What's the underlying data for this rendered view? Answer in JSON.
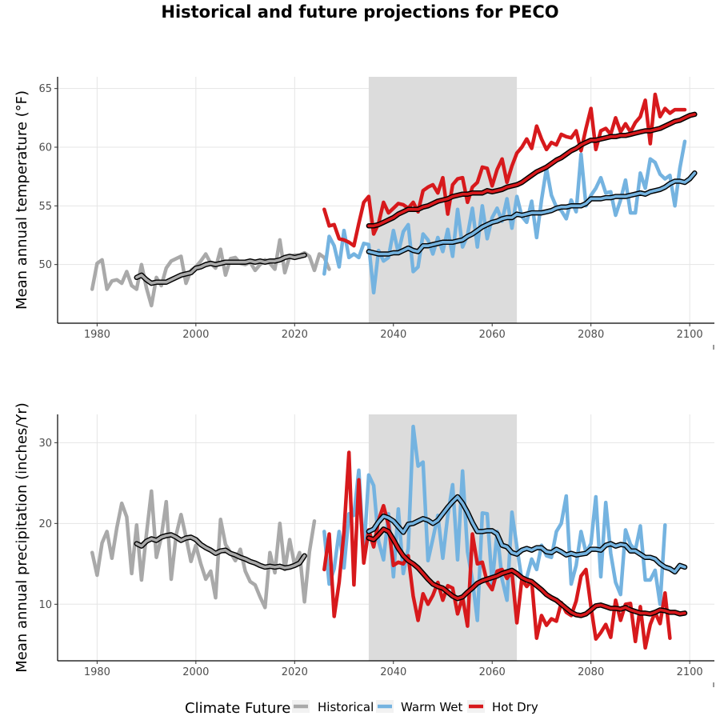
{
  "title": "Historical and future projections for PECO",
  "colors": {
    "historical": "#A9A9A9",
    "warm_wet": "#74B3E0",
    "hot_dry": "#D7191C",
    "smooth_outline": "#000000",
    "shade": "#DCDCDC",
    "grid": "#E5E5E5"
  },
  "legend": {
    "title": "Climate Future",
    "items": [
      {
        "label": "Historical",
        "key": "historical"
      },
      {
        "label": "Warm Wet",
        "key": "warm_wet"
      },
      {
        "label": "Hot Dry",
        "key": "hot_dry"
      }
    ]
  },
  "chart_data": [
    {
      "type": "line",
      "ylabel": "Mean annual temperature (°F)",
      "xlabel": "",
      "xlim": [
        1972,
        2105
      ],
      "ylim": [
        45,
        66
      ],
      "xticks": [
        1980,
        2000,
        2020,
        2040,
        2060,
        2080,
        2100
      ],
      "yticks": [
        50,
        55,
        60,
        65
      ],
      "shaded_period": [
        2035,
        2065
      ],
      "series": [
        {
          "name": "Historical",
          "key": "historical",
          "x_start": 1979,
          "values": [
            47.9,
            50.1,
            50.4,
            47.9,
            48.6,
            48.7,
            48.4,
            49.4,
            48.2,
            47.9,
            50.0,
            48.0,
            46.5,
            48.9,
            48.2,
            49.7,
            50.3,
            50.5,
            50.7,
            48.4,
            49.5,
            49.8,
            50.3,
            50.9,
            50.1,
            49.7,
            51.3,
            49.1,
            50.5,
            50.6,
            50.1,
            50.0,
            50.2,
            49.5,
            50.0,
            50.4,
            50.1,
            49.6,
            52.1,
            49.3,
            50.7,
            50.8,
            50.8,
            51.0,
            50.7,
            49.5,
            50.9,
            50.6,
            49.6
          ]
        },
        {
          "name": "Historical smooth",
          "key": "historical",
          "smooth": true,
          "x_start": 1988,
          "values": [
            48.9,
            49.1,
            48.7,
            48.4,
            48.5,
            48.5,
            48.5,
            48.7,
            48.9,
            49.1,
            49.2,
            49.3,
            49.7,
            49.8,
            50.0,
            50.1,
            50.0,
            50.1,
            50.2,
            50.2,
            50.2,
            50.2,
            50.2,
            50.3,
            50.2,
            50.3,
            50.2,
            50.3,
            50.3,
            50.4,
            50.6,
            50.7,
            50.6,
            50.7,
            50.8
          ]
        },
        {
          "name": "Warm Wet",
          "key": "warm_wet",
          "x_start": 2026,
          "values": [
            49.2,
            52.4,
            51.6,
            49.8,
            52.9,
            50.6,
            50.9,
            50.6,
            51.8,
            51.7,
            47.6,
            51.2,
            50.3,
            50.6,
            52.9,
            51.0,
            52.8,
            53.4,
            49.4,
            49.8,
            52.6,
            52.1,
            50.9,
            52.3,
            51.1,
            53.0,
            50.7,
            54.7,
            51.5,
            52.5,
            54.8,
            51.5,
            55.0,
            52.2,
            54.0,
            54.8,
            53.7,
            55.6,
            53.1,
            55.8,
            54.1,
            53.6,
            55.4,
            52.3,
            55.5,
            58.2,
            55.9,
            54.9,
            54.6,
            53.9,
            55.5,
            54.5,
            59.4,
            55.0,
            55.9,
            56.5,
            57.4,
            56.1,
            56.2,
            54.2,
            55.5,
            57.2,
            54.4,
            54.4,
            57.8,
            56.5,
            59.0,
            58.7,
            57.7,
            57.3,
            57.6,
            55.0,
            58.2,
            60.5
          ]
        },
        {
          "name": "Warm Wet smooth",
          "key": "warm_wet",
          "smooth": true,
          "x_start": 2035,
          "values": [
            51.1,
            51.0,
            50.9,
            50.9,
            50.9,
            51.0,
            51.0,
            51.2,
            51.4,
            51.2,
            51.1,
            51.6,
            51.6,
            51.7,
            51.8,
            51.9,
            51.9,
            51.9,
            52.0,
            52.1,
            52.4,
            52.6,
            52.9,
            53.2,
            53.4,
            53.6,
            53.7,
            53.9,
            54.0,
            54.0,
            54.3,
            54.2,
            54.3,
            54.4,
            54.4,
            54.4,
            54.5,
            54.6,
            54.8,
            54.9,
            54.9,
            55.0,
            55.0,
            55.0,
            55.2,
            55.6,
            55.6,
            55.6,
            55.7,
            55.7,
            55.8,
            55.8,
            55.8,
            55.9,
            56.0,
            56.1,
            56.0,
            56.2,
            56.3,
            56.4,
            56.6,
            56.9,
            57.1,
            57.1,
            57.0,
            57.3,
            57.8
          ]
        },
        {
          "name": "Hot Dry",
          "key": "hot_dry",
          "x_start": 2026,
          "values": [
            54.7,
            53.3,
            53.4,
            52.2,
            52.1,
            51.9,
            51.6,
            53.5,
            55.3,
            55.8,
            52.6,
            53.5,
            55.3,
            54.4,
            54.8,
            55.2,
            55.1,
            54.8,
            55.3,
            54.5,
            56.3,
            56.6,
            56.8,
            56.1,
            57.4,
            54.3,
            56.8,
            57.3,
            57.4,
            55.3,
            56.6,
            57.0,
            58.3,
            58.2,
            56.7,
            58.1,
            59.0,
            57.0,
            58.4,
            59.5,
            60.0,
            60.7,
            59.9,
            61.8,
            60.7,
            59.8,
            60.4,
            60.2,
            61.1,
            60.9,
            60.8,
            61.4,
            59.7,
            61.6,
            63.3,
            59.8,
            61.4,
            61.6,
            61.1,
            62.5,
            61.3,
            62.0,
            61.3,
            62.1,
            62.6,
            64.0,
            60.3,
            64.5,
            62.6,
            63.3,
            62.9,
            63.2,
            63.2,
            63.2
          ]
        },
        {
          "name": "Hot Dry smooth",
          "key": "hot_dry",
          "smooth": true,
          "x_start": 2035,
          "values": [
            53.3,
            53.3,
            53.4,
            53.6,
            53.8,
            54.0,
            54.3,
            54.5,
            54.7,
            54.7,
            54.7,
            54.9,
            55.0,
            55.2,
            55.4,
            55.5,
            55.6,
            55.8,
            55.9,
            56.0,
            56.0,
            56.1,
            56.1,
            56.1,
            56.3,
            56.2,
            56.3,
            56.4,
            56.6,
            56.7,
            56.8,
            57.0,
            57.3,
            57.6,
            57.9,
            58.1,
            58.3,
            58.6,
            58.9,
            59.1,
            59.4,
            59.7,
            59.9,
            60.2,
            60.4,
            60.6,
            60.6,
            60.7,
            60.8,
            60.9,
            60.9,
            61.0,
            61.0,
            61.1,
            61.2,
            61.3,
            61.4,
            61.4,
            61.5,
            61.6,
            61.8,
            62.0,
            62.2,
            62.3,
            62.5,
            62.7,
            62.8
          ]
        }
      ]
    },
    {
      "type": "line",
      "ylabel": "Mean annual precipitation (inches/Yr)",
      "xlabel": "",
      "xlim": [
        1972,
        2105
      ],
      "ylim": [
        3,
        33.5
      ],
      "xticks": [
        1980,
        2000,
        2020,
        2040,
        2060,
        2080,
        2100
      ],
      "yticks": [
        10,
        20,
        30
      ],
      "shaded_period": [
        2035,
        2065
      ],
      "series": [
        {
          "name": "Historical",
          "key": "historical",
          "x_start": 1979,
          "values": [
            16.4,
            13.6,
            17.6,
            19.0,
            15.7,
            19.5,
            22.5,
            20.8,
            13.8,
            19.8,
            13.0,
            18.7,
            24.0,
            15.8,
            18.3,
            22.7,
            13.1,
            18.6,
            21.1,
            18.3,
            15.3,
            17.3,
            15.0,
            13.1,
            14.1,
            10.8,
            20.5,
            17.4,
            16.4,
            15.4,
            16.8,
            14.1,
            12.8,
            12.4,
            10.9,
            9.6,
            16.4,
            13.9,
            20.0,
            14.3,
            18.0,
            14.8,
            16.4,
            10.3,
            16.5,
            20.3
          ]
        },
        {
          "name": "Historical smooth",
          "key": "historical",
          "smooth": true,
          "x_start": 1988,
          "values": [
            17.5,
            17.2,
            17.8,
            18.1,
            17.9,
            18.3,
            18.5,
            18.6,
            18.3,
            17.9,
            18.2,
            18.3,
            18.0,
            17.4,
            17.0,
            16.7,
            16.3,
            16.6,
            16.7,
            16.3,
            16.1,
            15.8,
            15.6,
            15.3,
            15.1,
            14.8,
            14.6,
            14.7,
            14.6,
            14.7,
            14.5,
            14.6,
            14.8,
            15.1,
            16.0
          ]
        },
        {
          "name": "Warm Wet",
          "key": "warm_wet",
          "x_start": 2026,
          "values": [
            19.0,
            12.5,
            14.4,
            19.0,
            14.5,
            21.2,
            21.0,
            26.6,
            16.2,
            26.0,
            24.7,
            17.8,
            15.5,
            21.2,
            13.4,
            21.8,
            13.8,
            16.9,
            32.0,
            27.1,
            27.6,
            15.4,
            18.1,
            21.0,
            15.7,
            21.0,
            24.8,
            15.5,
            26.5,
            16.5,
            13.0,
            8.0,
            21.3,
            21.2,
            12.5,
            19.0,
            13.1,
            10.5,
            21.4,
            17.1,
            13.0,
            13.3,
            15.6,
            14.3,
            17.3,
            16.0,
            15.8,
            19.0,
            20.0,
            23.4,
            12.5,
            14.8,
            19.0,
            16.4,
            17.5,
            23.3,
            13.4,
            22.6,
            16.3,
            12.7,
            11.2,
            19.2,
            17.4,
            16.7,
            19.7,
            13.0,
            13.0,
            14.2,
            10.0,
            19.8
          ]
        },
        {
          "name": "Warm Wet smooth",
          "key": "warm_wet",
          "smooth": true,
          "x_start": 2035,
          "values": [
            19.0,
            19.3,
            20.2,
            20.9,
            20.7,
            20.3,
            19.6,
            18.9,
            19.9,
            20.0,
            20.3,
            20.6,
            20.4,
            20.0,
            20.4,
            21.2,
            22.0,
            22.7,
            23.3,
            22.5,
            21.4,
            20.1,
            19.0,
            19.0,
            19.1,
            19.1,
            18.7,
            17.3,
            17.1,
            16.4,
            16.2,
            16.7,
            16.9,
            16.7,
            17.0,
            17.0,
            16.5,
            16.4,
            16.8,
            16.5,
            16.1,
            16.3,
            16.1,
            16.2,
            16.3,
            16.8,
            16.8,
            16.7,
            17.3,
            17.5,
            17.2,
            17.4,
            17.3,
            16.6,
            16.6,
            16.2,
            15.8,
            15.8,
            15.6,
            15.0,
            14.6,
            14.4,
            14.0,
            14.8,
            14.6
          ]
        },
        {
          "name": "Hot Dry",
          "key": "hot_dry",
          "x_start": 2026,
          "values": [
            14.3,
            18.7,
            8.5,
            12.7,
            19.0,
            28.8,
            12.4,
            25.4,
            15.1,
            19.2,
            17.1,
            20.4,
            22.2,
            19.8,
            14.8,
            15.2,
            15.0,
            16.0,
            11.0,
            8.0,
            11.3,
            10.0,
            11.1,
            12.7,
            10.5,
            12.3,
            12.0,
            8.8,
            10.9,
            7.3,
            18.7,
            15.0,
            15.2,
            12.7,
            11.8,
            14.1,
            14.3,
            13.2,
            14.0,
            7.7,
            13.1,
            12.2,
            12.9,
            5.8,
            8.6,
            7.4,
            8.2,
            7.9,
            10.2,
            9.0,
            8.6,
            10.4,
            13.5,
            14.3,
            9.7,
            5.7,
            6.5,
            7.5,
            5.9,
            10.5,
            8.0,
            10.0,
            10.1,
            5.4,
            9.7,
            4.6,
            7.5,
            9.0,
            7.6,
            11.4,
            5.8
          ]
        },
        {
          "name": "Hot Dry smooth",
          "key": "hot_dry",
          "smooth": true,
          "x_start": 2035,
          "values": [
            18.2,
            18.0,
            18.6,
            19.3,
            19.0,
            18.0,
            16.9,
            16.0,
            15.4,
            15.0,
            14.5,
            13.8,
            13.1,
            12.5,
            12.2,
            12.0,
            11.5,
            11.0,
            10.7,
            10.9,
            11.5,
            12.0,
            12.6,
            12.9,
            13.1,
            13.3,
            13.5,
            13.8,
            14.0,
            14.2,
            13.8,
            13.3,
            13.0,
            12.8,
            12.3,
            11.8,
            11.2,
            10.8,
            10.5,
            10.0,
            9.5,
            9.0,
            8.7,
            8.6,
            8.8,
            9.3,
            9.8,
            9.9,
            9.7,
            9.5,
            9.5,
            9.4,
            9.6,
            9.3,
            9.1,
            8.9,
            8.9,
            8.8,
            9.0,
            9.3,
            9.2,
            9.0,
            9.0,
            8.8,
            8.9
          ]
        }
      ]
    }
  ]
}
